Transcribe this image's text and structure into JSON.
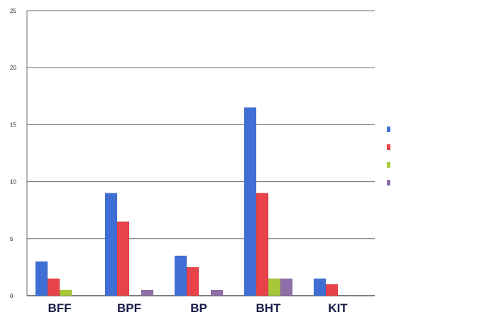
{
  "chart_data": {
    "type": "bar",
    "categories": [
      "BFF",
      "BPF",
      "BP",
      "BHT",
      "KIT"
    ],
    "ylim": [
      0,
      25
    ],
    "yticks": [
      0,
      5,
      10,
      15,
      20,
      25
    ],
    "grid": true,
    "legend_position": "right",
    "series": [
      {
        "name": "",
        "color": "#3f6fd4",
        "values": [
          3,
          9,
          3.5,
          16.5,
          1.5
        ]
      },
      {
        "name": "",
        "color": "#e8424a",
        "values": [
          1.5,
          6.5,
          2.5,
          9,
          1
        ]
      },
      {
        "name": "",
        "color": "#a8c83a",
        "values": [
          0.5,
          0,
          0,
          1.5,
          0
        ]
      },
      {
        "name": "",
        "color": "#8d6ea6",
        "values": [
          0,
          0.5,
          0.5,
          1.5,
          0
        ]
      }
    ]
  }
}
